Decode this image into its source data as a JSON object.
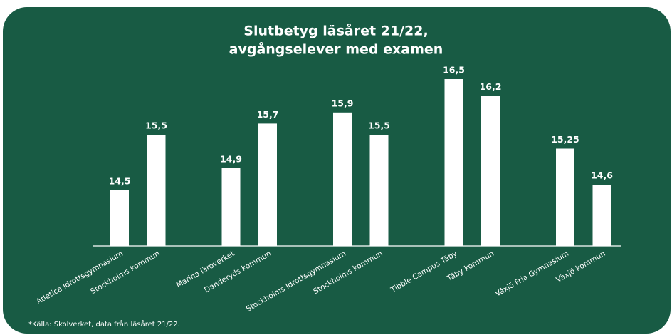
{
  "chart_data": {
    "type": "bar",
    "title": [
      "Slutbetyg läsåret 21/22,",
      "avgångselever med examen"
    ],
    "categories": [
      "Atletica Idrottsgymnasium",
      "Stockholms kommun",
      "Marina läroverket",
      "Danderyds kommun",
      "Stockholms Idrottsgymnasium",
      "Stockholms kommun",
      "Tibble Campus Täby",
      "Täby kommun",
      "Växjö Fria Gymnasium",
      "Växjö kommun"
    ],
    "values": [
      14.5,
      15.5,
      14.9,
      15.7,
      15.9,
      15.5,
      16.5,
      16.2,
      15.25,
      14.6
    ],
    "value_labels": [
      "14,5",
      "15,5",
      "14,9",
      "15,7",
      "15,9",
      "15,5",
      "16,5",
      "16,2",
      "15,25",
      "14,6"
    ],
    "color": "#ffffff",
    "ylim": [
      13.5,
      17
    ],
    "footnote": "*Källa: Skolverket, data från läsåret 21/22."
  }
}
